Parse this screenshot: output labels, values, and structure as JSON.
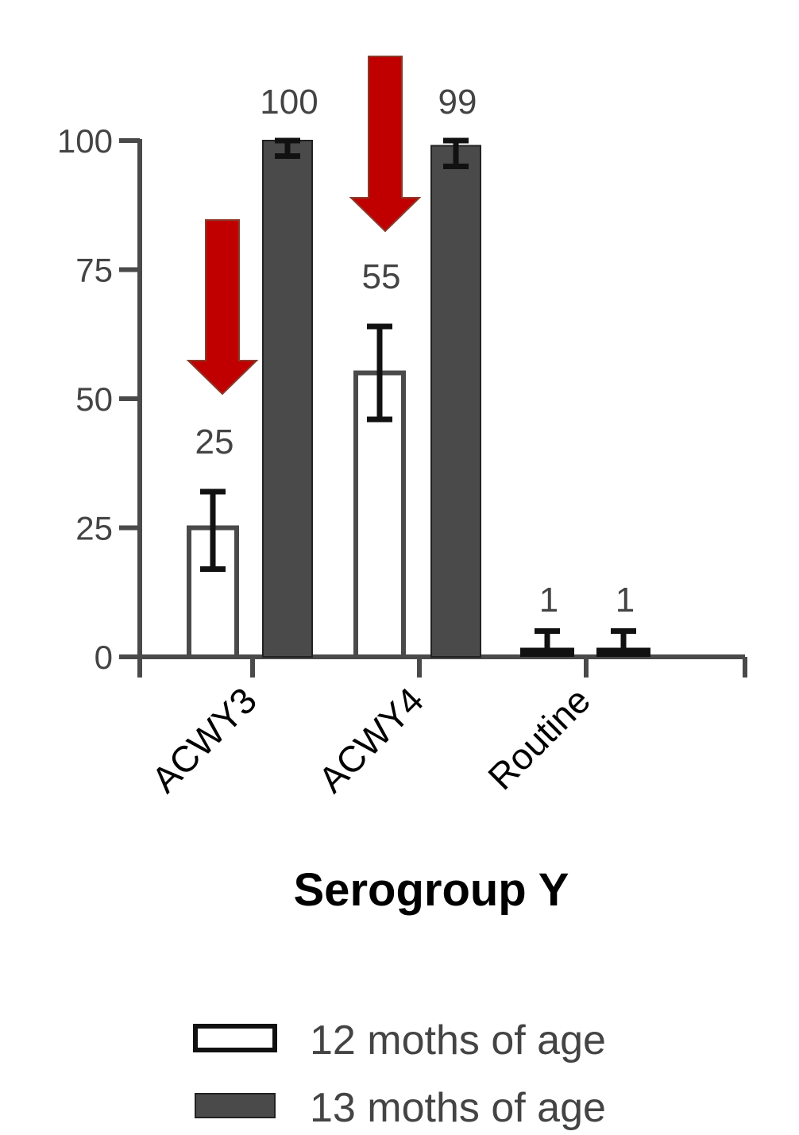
{
  "chart_data": {
    "type": "bar",
    "categories": [
      "ACWY3",
      "ACWY4",
      "Routine"
    ],
    "series": [
      {
        "name": "12 moths of age",
        "values": [
          25,
          55,
          1
        ],
        "error_low": [
          17,
          46,
          0
        ],
        "error_high": [
          32,
          64,
          5
        ],
        "fill": "#ffffff",
        "stroke": "#4a4a4a"
      },
      {
        "name": "13 moths of age",
        "values": [
          100,
          99,
          1
        ],
        "error_low": [
          97,
          95,
          0
        ],
        "error_high": [
          100,
          100,
          5
        ],
        "fill": "#4a4a4a",
        "stroke": "#222222"
      }
    ],
    "data_labels": [
      [
        "25",
        "55",
        "1"
      ],
      [
        "100",
        "99",
        "1"
      ]
    ],
    "yticks": [
      "0",
      "25",
      "50",
      "75",
      "100"
    ],
    "ylim": [
      0,
      100
    ],
    "xlabel": "Serogroup Y",
    "ylabel": "",
    "legend_position": "bottom",
    "annotations": {
      "arrows": [
        {
          "category": "ACWY3",
          "meaning": "points to 12 months bar"
        },
        {
          "category": "ACWY4",
          "meaning": "points to 12 months bar"
        }
      ],
      "arrow_color": "#c00000"
    },
    "axis_color": "#4a4a4a",
    "errorbar_color": "#111111"
  }
}
